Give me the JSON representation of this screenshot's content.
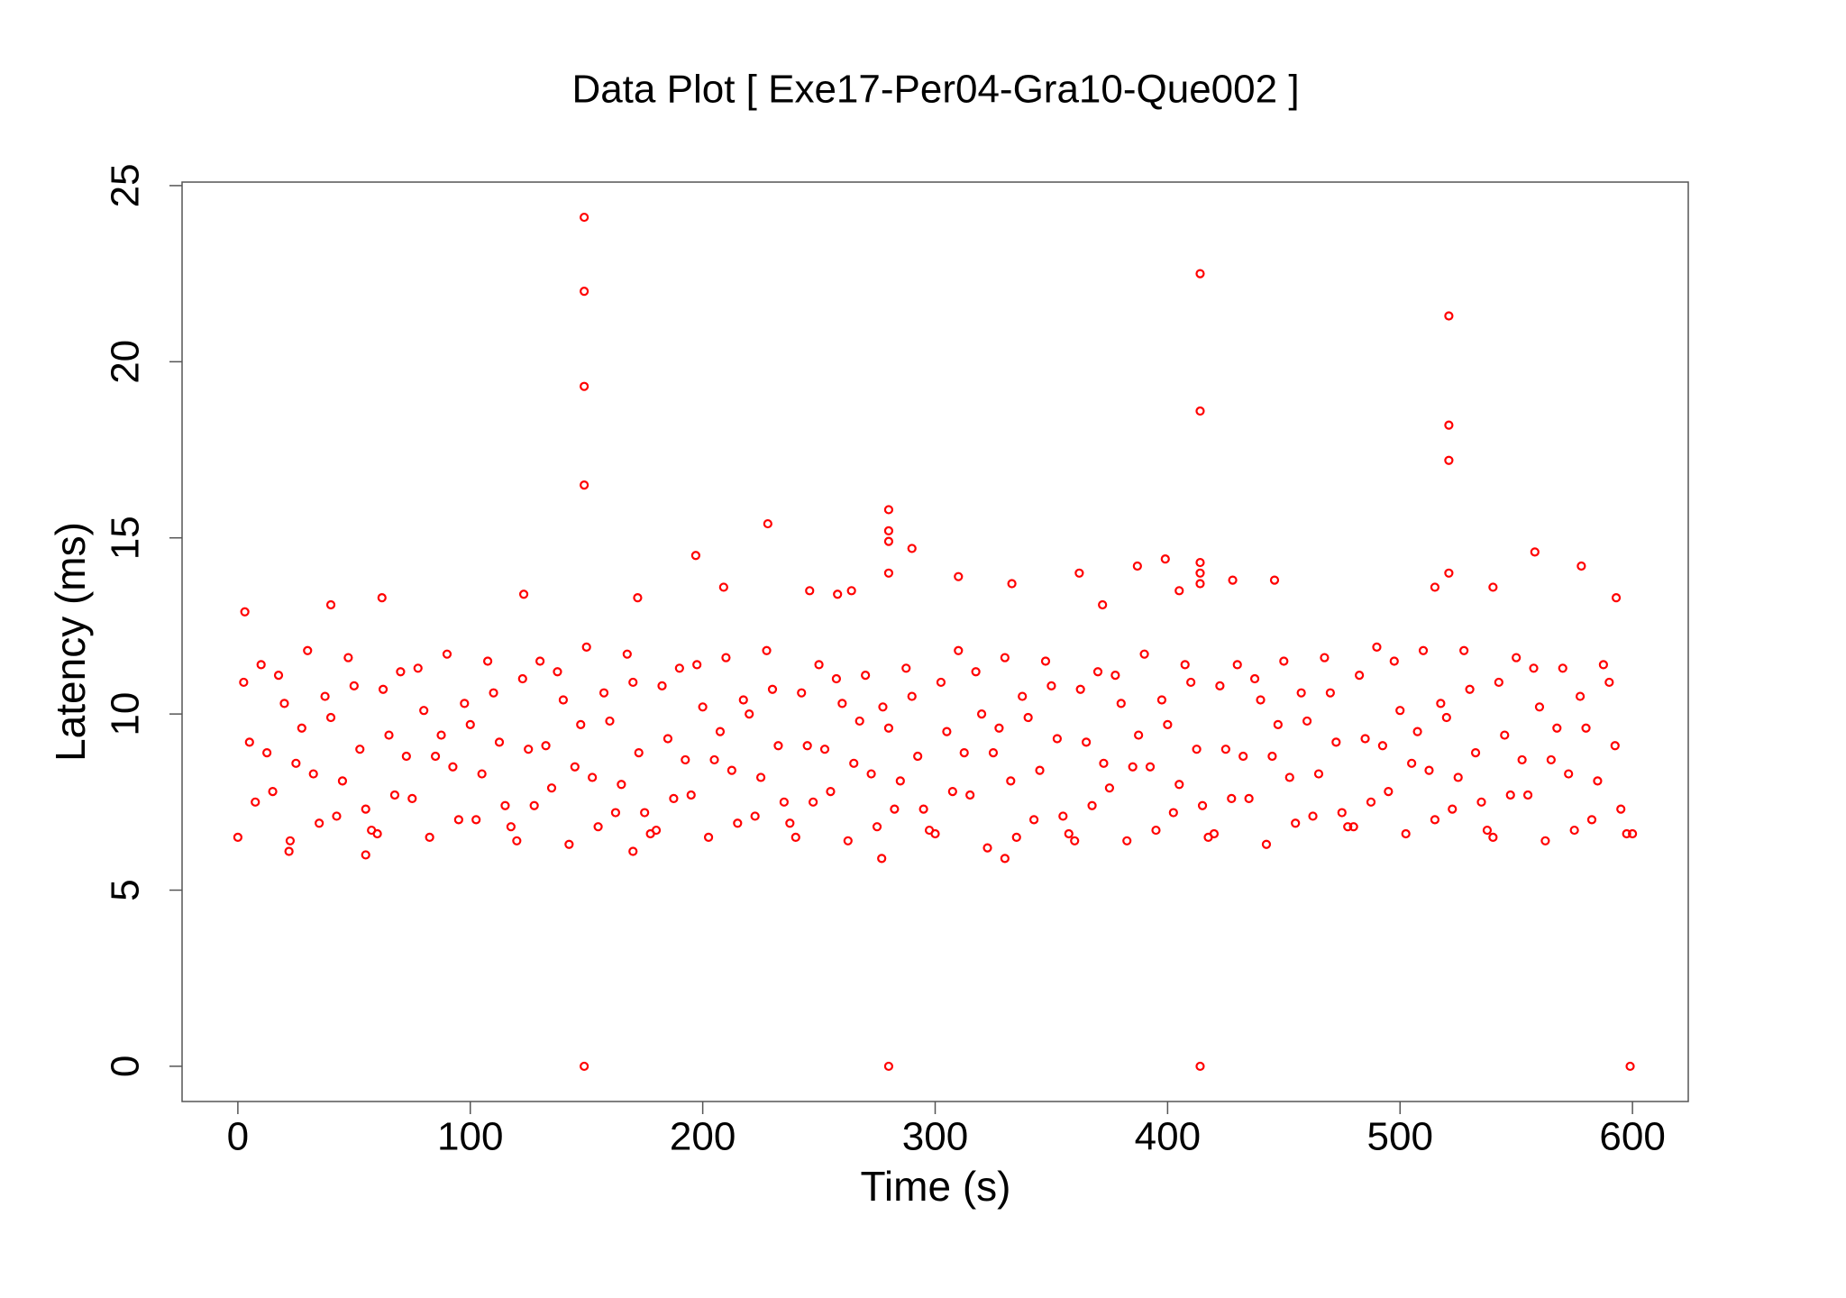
{
  "chart_data": {
    "type": "scatter",
    "title": "Data Plot [ Exe17-Per04-Gra10-Que002 ]",
    "x_label": "Time (s)",
    "y_label": "Latency (ms)",
    "color": "#ff0000",
    "xlim": [
      -24,
      624
    ],
    "ylim": [
      -1,
      25.1
    ],
    "xticks": [
      0,
      100,
      200,
      300,
      400,
      500,
      600
    ],
    "yticks": [
      0,
      5,
      10,
      15,
      20,
      25
    ],
    "x": [
      0,
      5,
      10,
      15,
      20,
      25,
      30,
      35,
      40,
      45,
      50,
      55,
      60,
      65,
      70,
      75,
      80,
      85,
      90,
      95,
      100,
      105,
      110,
      115,
      120,
      125,
      130,
      135,
      140,
      145,
      150,
      155,
      160,
      165,
      170,
      175,
      180,
      185,
      190,
      195,
      200,
      205,
      210,
      215,
      220,
      225,
      230,
      235,
      240,
      245,
      250,
      255,
      260,
      265,
      270,
      275,
      280,
      285,
      290,
      295,
      300,
      305,
      310,
      315,
      320,
      325,
      330,
      335,
      340,
      345,
      350,
      355,
      360,
      365,
      370,
      375,
      380,
      385,
      390,
      395,
      400,
      405,
      410,
      415,
      420,
      425,
      430,
      435,
      440,
      445,
      450,
      455,
      460,
      465,
      470,
      475,
      480,
      485,
      490,
      495,
      500,
      505,
      510,
      515,
      520,
      525,
      530,
      535,
      540,
      545,
      550,
      555,
      560,
      565,
      570,
      575,
      580,
      585,
      590,
      595,
      600,
      2.5,
      7.5,
      12.5,
      17.5,
      22.5,
      27.5,
      32.5,
      37.5,
      42.5,
      47.5,
      52.5,
      57.5,
      62.5,
      67.5,
      72.5,
      77.5,
      82.5,
      87.5,
      92.5,
      97.5,
      102.5,
      107.5,
      112.5,
      117.5,
      122.5,
      127.5,
      132.5,
      137.5,
      142.5,
      147.5,
      152.5,
      157.5,
      162.5,
      167.5,
      172.5,
      177.5,
      182.5,
      187.5,
      192.5,
      197.5,
      202.5,
      207.5,
      212.5,
      217.5,
      222.5,
      227.5,
      232.5,
      237.5,
      242.5,
      247.5,
      252.5,
      257.5,
      262.5,
      267.5,
      272.5,
      277.5,
      282.5,
      287.5,
      292.5,
      297.5,
      302.5,
      307.5,
      312.5,
      317.5,
      322.5,
      327.5,
      332.5,
      337.5,
      342.5,
      347.5,
      352.5,
      357.5,
      362.5,
      367.5,
      372.5,
      377.5,
      382.5,
      387.5,
      392.5,
      397.5,
      402.5,
      407.5,
      412.5,
      417.5,
      422.5,
      427.5,
      432.5,
      437.5,
      442.5,
      447.5,
      452.5,
      457.5,
      462.5,
      467.5,
      472.5,
      477.5,
      482.5,
      487.5,
      492.5,
      497.5,
      502.5,
      507.5,
      512.5,
      517.5,
      522.5,
      527.5,
      532.5,
      537.5,
      542.5,
      547.5,
      552.5,
      557.5,
      562.5,
      567.5,
      572.5,
      577.5,
      582.5,
      587.5,
      592.5,
      597.5,
      149,
      149,
      149,
      149,
      149,
      280,
      280,
      280,
      280,
      280,
      290,
      228,
      197,
      414,
      414,
      414,
      414,
      414,
      414,
      521,
      521,
      521,
      521,
      599,
      558,
      578,
      362,
      399,
      387,
      428,
      446,
      333,
      310,
      246,
      258,
      264,
      209,
      172,
      123,
      62,
      40,
      593,
      540,
      515,
      3,
      330,
      277,
      55,
      22,
      170,
      372,
      405
    ],
    "y": [
      6.5,
      9.2,
      11.4,
      7.8,
      10.3,
      8.6,
      11.8,
      6.9,
      9.9,
      8.1,
      10.8,
      7.3,
      6.6,
      9.4,
      11.2,
      7.6,
      10.1,
      8.8,
      11.7,
      7.0,
      9.7,
      8.3,
      10.6,
      7.4,
      6.4,
      9.0,
      11.5,
      7.9,
      10.4,
      8.5,
      11.9,
      6.8,
      9.8,
      8.0,
      10.9,
      7.2,
      6.7,
      9.3,
      11.3,
      7.7,
      10.2,
      8.7,
      11.6,
      6.9,
      10.0,
      8.2,
      10.7,
      7.5,
      6.5,
      9.1,
      11.4,
      7.8,
      10.3,
      8.6,
      11.1,
      6.8,
      9.6,
      8.1,
      10.5,
      7.3,
      6.6,
      9.5,
      11.8,
      7.7,
      10.0,
      8.9,
      11.6,
      6.5,
      9.9,
      8.4,
      10.8,
      7.1,
      6.4,
      9.2,
      11.2,
      7.9,
      10.3,
      8.5,
      11.7,
      6.7,
      9.7,
      8.0,
      10.9,
      7.4,
      6.6,
      9.0,
      11.4,
      7.6,
      10.4,
      8.8,
      11.5,
      6.9,
      9.8,
      8.3,
      10.6,
      7.2,
      6.8,
      9.3,
      11.9,
      7.8,
      10.1,
      8.6,
      11.8,
      7.0,
      9.9,
      8.2,
      10.7,
      7.5,
      6.5,
      9.4,
      11.6,
      7.7,
      10.2,
      8.7,
      11.3,
      6.7,
      9.6,
      8.1,
      10.9,
      7.3,
      6.6,
      10.9,
      7.5,
      8.9,
      11.1,
      6.4,
      9.6,
      8.3,
      10.5,
      7.1,
      11.6,
      9.0,
      6.7,
      10.7,
      7.7,
      8.8,
      11.3,
      6.5,
      9.4,
      8.5,
      10.3,
      7.0,
      11.5,
      9.2,
      6.8,
      11.0,
      7.4,
      9.1,
      11.2,
      6.3,
      9.7,
      8.2,
      10.6,
      7.2,
      11.7,
      8.9,
      6.6,
      10.8,
      7.6,
      8.7,
      11.4,
      6.5,
      9.5,
      8.4,
      10.4,
      7.1,
      11.8,
      9.1,
      6.9,
      10.6,
      7.5,
      9.0,
      11.0,
      6.4,
      9.8,
      8.3,
      10.2,
      7.3,
      11.3,
      8.8,
      6.7,
      10.9,
      7.8,
      8.9,
      11.2,
      6.2,
      9.6,
      8.1,
      10.5,
      7.0,
      11.5,
      9.3,
      6.6,
      10.7,
      7.4,
      8.6,
      11.1,
      6.4,
      9.4,
      8.5,
      10.4,
      7.2,
      11.4,
      9.0,
      6.5,
      10.8,
      7.6,
      8.8,
      11.0,
      6.3,
      9.7,
      8.2,
      10.6,
      7.1,
      11.6,
      9.2,
      6.8,
      11.1,
      7.5,
      9.1,
      11.5,
      6.6,
      9.5,
      8.4,
      10.3,
      7.3,
      11.8,
      8.9,
      6.7,
      10.9,
      7.7,
      8.7,
      11.3,
      6.4,
      9.6,
      8.3,
      10.5,
      7.0,
      11.4,
      9.1,
      6.6,
      24.1,
      22,
      19.3,
      16.5,
      0,
      0,
      15.8,
      15.2,
      14.9,
      14,
      14.7,
      15.4,
      14.5,
      22.5,
      18.6,
      14.3,
      14,
      13.7,
      0,
      21.3,
      18.2,
      17.2,
      14,
      0,
      14.6,
      14.2,
      14,
      14.4,
      14.2,
      13.8,
      13.8,
      13.7,
      13.9,
      13.5,
      13.4,
      13.5,
      13.6,
      13.3,
      13.4,
      13.3,
      13.1,
      13.3,
      13.6,
      13.6,
      12.9,
      5.9,
      5.9,
      6,
      6.1,
      6.1,
      13.1,
      13.5
    ]
  }
}
